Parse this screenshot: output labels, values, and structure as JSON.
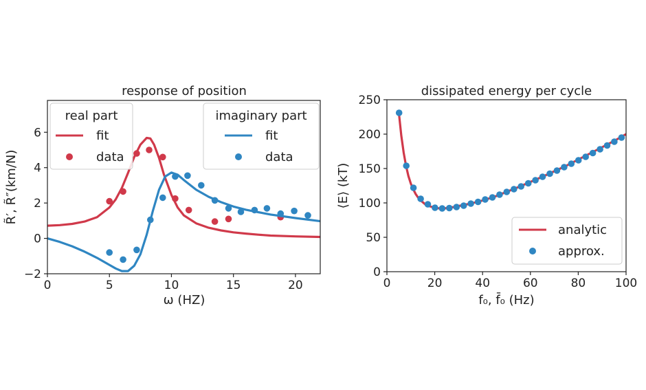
{
  "chart_data": [
    {
      "type": "line",
      "title": "response of position",
      "xlabel": "ω (HZ)",
      "ylabel": "R̃′, R̃″(km/N)",
      "xlim": [
        0,
        22
      ],
      "ylim": [
        -2,
        7.8
      ],
      "xticks": [
        0,
        5,
        10,
        15,
        20
      ],
      "yticks": [
        -2,
        0,
        2,
        4,
        6
      ],
      "grid": false,
      "legends": [
        {
          "title": "real part",
          "position": "top-left",
          "entries": [
            "fit",
            "data"
          ]
        },
        {
          "title": "imaginary part",
          "position": "top-right",
          "entries": [
            "fit",
            "data"
          ]
        }
      ],
      "series": [
        {
          "name": "real part fit",
          "kind": "line",
          "color": "#d0394a",
          "x": [
            0,
            1,
            2,
            3,
            4,
            5,
            5.5,
            6,
            6.5,
            7,
            7.5,
            8,
            8.3,
            8.6,
            9,
            9.4,
            10,
            10.5,
            11,
            12,
            13,
            14,
            15,
            16,
            17,
            18,
            20,
            22
          ],
          "y": [
            0.72,
            0.75,
            0.82,
            0.95,
            1.2,
            1.75,
            2.2,
            2.85,
            3.7,
            4.6,
            5.3,
            5.68,
            5.65,
            5.3,
            4.55,
            3.6,
            2.45,
            1.75,
            1.3,
            0.85,
            0.6,
            0.45,
            0.34,
            0.27,
            0.21,
            0.16,
            0.11,
            0.08
          ]
        },
        {
          "name": "real part data",
          "kind": "scatter",
          "color": "#d0394a",
          "x": [
            5.0,
            6.1,
            7.2,
            8.2,
            9.3,
            10.3,
            11.4,
            13.5,
            14.6,
            18.8
          ],
          "y": [
            2.1,
            2.65,
            4.8,
            5.0,
            4.6,
            2.25,
            1.6,
            0.95,
            1.1,
            1.2
          ]
        },
        {
          "name": "imaginary part fit",
          "kind": "line",
          "color": "#2f86c2",
          "x": [
            0,
            1,
            2,
            3,
            4,
            5,
            5.5,
            6,
            6.5,
            7,
            7.5,
            8,
            8.5,
            9,
            9.5,
            10,
            10.5,
            11,
            12,
            13,
            14,
            15,
            16,
            17,
            18,
            20,
            22
          ],
          "y": [
            0.0,
            -0.2,
            -0.45,
            -0.75,
            -1.1,
            -1.5,
            -1.7,
            -1.85,
            -1.85,
            -1.55,
            -0.9,
            0.2,
            1.55,
            2.75,
            3.5,
            3.72,
            3.6,
            3.3,
            2.75,
            2.35,
            2.05,
            1.8,
            1.62,
            1.48,
            1.35,
            1.15,
            0.97
          ]
        },
        {
          "name": "imaginary part data",
          "kind": "scatter",
          "color": "#2f86c2",
          "x": [
            5.0,
            6.1,
            7.2,
            8.3,
            9.3,
            10.3,
            11.3,
            12.4,
            13.5,
            14.6,
            15.6,
            16.7,
            17.7,
            18.8,
            19.9,
            21.0
          ],
          "y": [
            -0.8,
            -1.2,
            -0.65,
            1.05,
            2.3,
            3.5,
            3.55,
            3.0,
            2.15,
            1.7,
            1.5,
            1.6,
            1.7,
            1.4,
            1.55,
            1.3
          ]
        }
      ]
    },
    {
      "type": "line",
      "title": "dissipated energy per cycle",
      "xlabel": "f₀, f̄₀ (Hz)",
      "ylabel": "⟨E⟩ (kT)",
      "xlim": [
        0,
        100
      ],
      "ylim": [
        0,
        250
      ],
      "xticks": [
        0,
        20,
        40,
        60,
        80,
        100
      ],
      "yticks": [
        0,
        50,
        100,
        150,
        200,
        250
      ],
      "grid": false,
      "legends": [
        {
          "title": "",
          "position": "bottom-right",
          "entries": [
            "analytic",
            "approx."
          ]
        }
      ],
      "series": [
        {
          "name": "analytic",
          "kind": "line",
          "color": "#d0394a",
          "x": [
            5,
            6,
            7,
            8,
            9,
            10,
            11,
            12,
            13,
            14,
            16,
            18,
            20,
            22,
            24,
            26,
            28,
            30,
            35,
            40,
            45,
            50,
            55,
            60,
            65,
            70,
            75,
            80,
            85,
            90,
            95,
            100
          ],
          "y": [
            231,
            198,
            173,
            154,
            139,
            128,
            120,
            113,
            108,
            104,
            98,
            95,
            93,
            92,
            92,
            93,
            94,
            95.5,
            99,
            103.5,
            109,
            116,
            123,
            130.5,
            138,
            146,
            154,
            163,
            172,
            181,
            190,
            200
          ]
        },
        {
          "name": "approx.",
          "kind": "scatter",
          "color": "#2f86c2",
          "x": [
            5.1,
            8.1,
            11.1,
            14.1,
            17.1,
            20.1,
            23.1,
            26.1,
            29.1,
            32.1,
            35.1,
            38.1,
            41.1,
            44.1,
            47.1,
            50.1,
            53.1,
            56.1,
            59.1,
            62.1,
            65.1,
            68.1,
            71.1,
            74.1,
            77.1,
            80.1,
            83.1,
            86.1,
            89.1,
            92.1,
            95.1,
            98.1
          ],
          "y": [
            231,
            154,
            122,
            106,
            98,
            93,
            92,
            92.5,
            94,
            96,
            99,
            101.5,
            105,
            108,
            112,
            116,
            120,
            124,
            128.5,
            133,
            138,
            142.5,
            147,
            152,
            157,
            162,
            167,
            172.5,
            178,
            183.5,
            189,
            195
          ]
        }
      ]
    }
  ]
}
